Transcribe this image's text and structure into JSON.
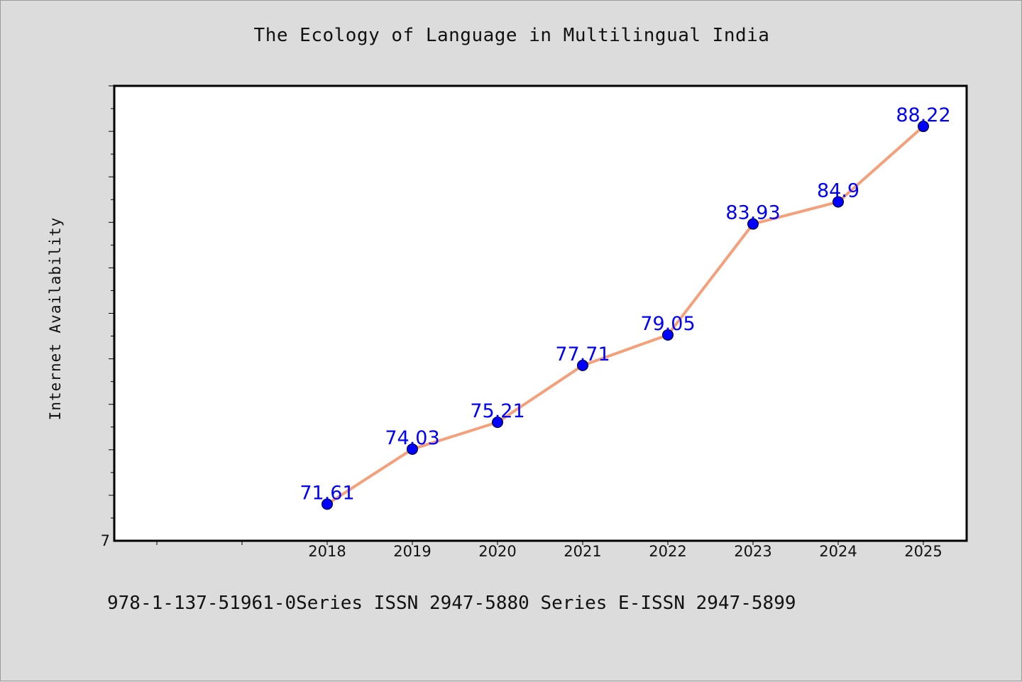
{
  "figure": {
    "title": "The Ecology of Language in Multilingual India",
    "footer": "978-1-137-51961-0Series ISSN 2947-5880 Series E-ISSN 2947-5899"
  },
  "chart_data": {
    "type": "line",
    "title": "The Ecology of Language in Multilingual India",
    "xlabel": "",
    "ylabel": "Internet Availability",
    "categories": [
      "2018",
      "2019",
      "2020",
      "2021",
      "2022",
      "2023",
      "2024",
      "2025"
    ],
    "series": [
      {
        "values": [
          71.61,
          74.03,
          75.21,
          77.71,
          79.05,
          83.93,
          84.9,
          88.22
        ],
        "line_color": "#f4a07a",
        "marker_color": "#0000ff"
      }
    ],
    "data_labels": [
      "71.61",
      "74.03",
      "75.21",
      "77.71",
      "79.05",
      "83.93",
      "84.9",
      "88.22"
    ],
    "y_tick_labels": [
      "7"
    ],
    "ylim": [
      70,
      90
    ],
    "grid": false,
    "legend": "none",
    "colors": {
      "background": "#dcdcdc",
      "plot_background": "#ffffff",
      "line": "#f4a07a",
      "marker": "#0000ff",
      "data_label": "#0000ff"
    }
  }
}
